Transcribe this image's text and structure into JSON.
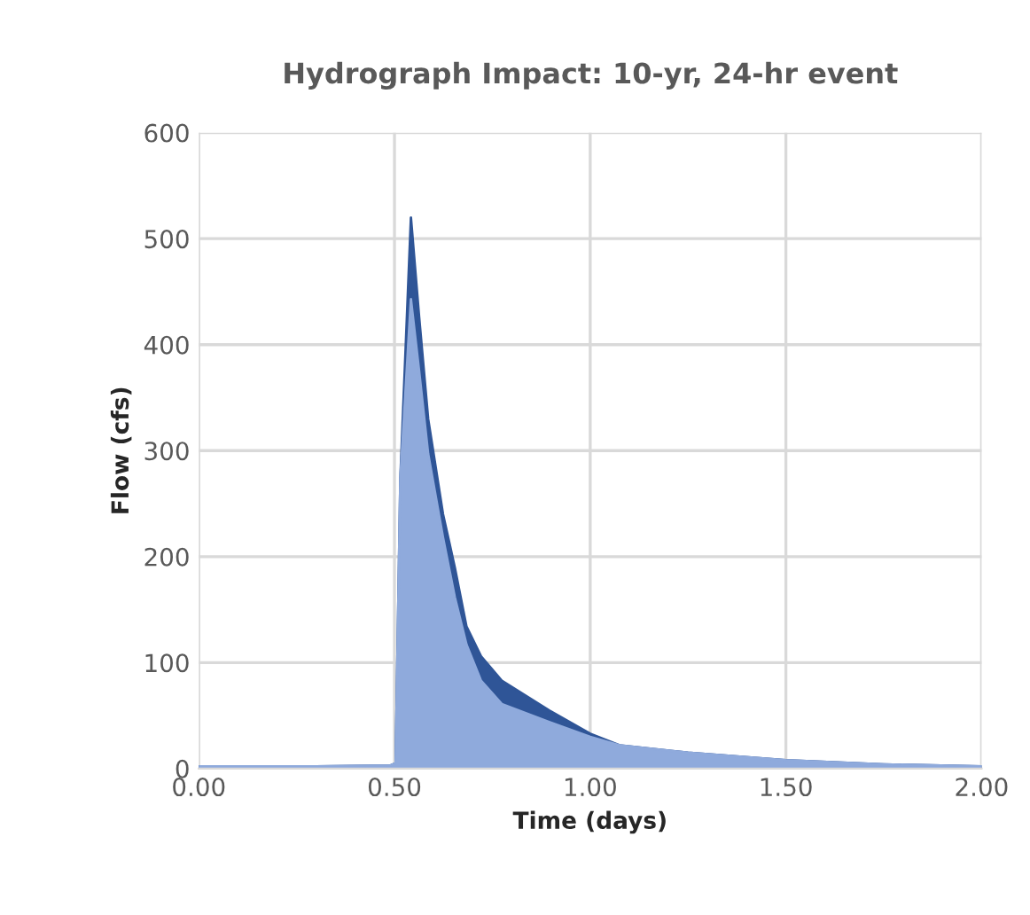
{
  "chart_data": {
    "type": "area",
    "title": "Hydrograph Impact: 10-yr, 24-hr event",
    "xlabel": "Time (days)",
    "ylabel": "Flow (cfs)",
    "x": [
      0,
      0.3,
      0.49,
      0.503,
      0.515,
      0.542,
      0.563,
      0.586,
      0.624,
      0.654,
      0.684,
      0.721,
      0.774,
      0.895,
      1.0,
      1.075,
      1.25,
      1.5,
      1.75,
      2.0
    ],
    "series": [
      {
        "color": "#2f5597",
        "values": [
          2,
          2,
          3,
          5,
          274,
          520,
          426,
          330,
          240,
          190,
          134,
          106,
          83,
          55,
          33,
          22,
          15,
          8,
          4,
          2
        ]
      },
      {
        "color": "#8faadc",
        "values": [
          2,
          2,
          3,
          5,
          274,
          443,
          375,
          297,
          218,
          162,
          117,
          83,
          61,
          44,
          30,
          22,
          15,
          8,
          4,
          2
        ]
      }
    ],
    "xlim": [
      0,
      2
    ],
    "xticks": [
      {
        "value": 0,
        "label": "0.00"
      },
      {
        "value": 0.5,
        "label": "0.50"
      },
      {
        "value": 1,
        "label": "1.00"
      },
      {
        "value": 1.5,
        "label": "1.50"
      },
      {
        "value": 2,
        "label": "2.00"
      }
    ],
    "ylim": [
      0,
      600
    ],
    "yticks": [
      0,
      100,
      200,
      300,
      400,
      500,
      600
    ],
    "grid": true,
    "legend": false
  }
}
